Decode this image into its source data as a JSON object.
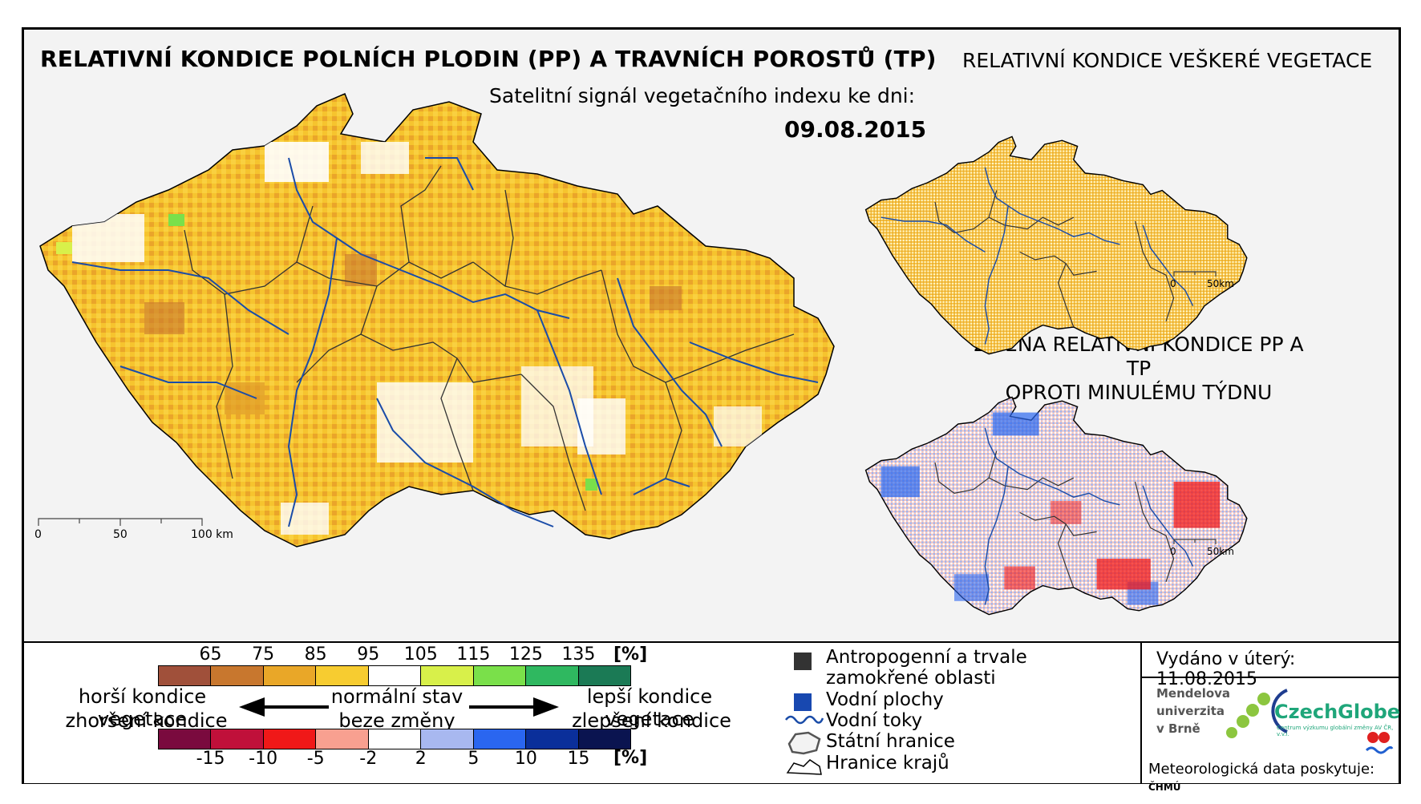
{
  "titles": {
    "main": "RELATIVNÍ KONDICE POLNÍCH PLODIN (PP) A TRAVNÍCH POROSTŮ (TP)",
    "subtitle": "Satelitní signál vegetačního indexu ke dni:",
    "date": "09.08.2015",
    "right_top": "RELATIVNÍ KONDICE VEŠKERÉ VEGETACE",
    "change_line1": "ZMĚNA RELATIVNÍ KONDICE PP A TP",
    "change_line2": "OPROTI MINULÉMU TÝDNU"
  },
  "scalebars": {
    "main": {
      "zero": "0",
      "mid": "50",
      "end": "100 km"
    },
    "small_top": {
      "zero": "0",
      "end": "50km"
    },
    "small_bottom": {
      "zero": "0",
      "end": "50km"
    }
  },
  "condition_legend": {
    "ticks": [
      "65",
      "75",
      "85",
      "95",
      "105",
      "115",
      "125",
      "135"
    ],
    "unit": "[%]",
    "colors": [
      "#a0503a",
      "#c8772e",
      "#e9a728",
      "#f7cc30",
      "#ffffff",
      "#d8f04a",
      "#7ae04a",
      "#2fb860",
      "#1b7a55"
    ]
  },
  "change_legend": {
    "ticks": [
      "-15",
      "-10",
      "-5",
      "-2",
      "2",
      "5",
      "10",
      "15"
    ],
    "unit": "[%]",
    "colors": [
      "#7a0a3e",
      "#c0103a",
      "#f01818",
      "#f8a090",
      "#ffffff",
      "#a8b8f0",
      "#2a66f0",
      "#0a2f9a",
      "#0a1450"
    ]
  },
  "arrows": {
    "worse_top": "horší kondice vegetace",
    "worse_bottom": "zhoršení kondice",
    "normal_top": "normální stav",
    "normal_bottom": "beze změny",
    "better_top": "lepší kondice vegetace",
    "better_bottom": "zlepšení kondice"
  },
  "symbols": {
    "anthropogenic_1": "Antropogenní a trvale",
    "anthropogenic_2": "zamokřené oblasti",
    "water_bodies": "Vodní plochy",
    "rivers": "Vodní toky",
    "state_border": "Státní hranice",
    "region_border": "Hranice krajů"
  },
  "issued": {
    "text": "Vydáno v úterý: 11.08.2015",
    "mendel_1": "Mendelova",
    "mendel_2": "univerzita",
    "mendel_3": "v Brně",
    "czechglobe": "CzechGlobe",
    "czechglobe_sub": "Centrum výzkumu globální změny AV ČR, v.v.i.",
    "meteo": "Meteorologická data poskytuje:",
    "chmu": "ČHMÚ"
  }
}
